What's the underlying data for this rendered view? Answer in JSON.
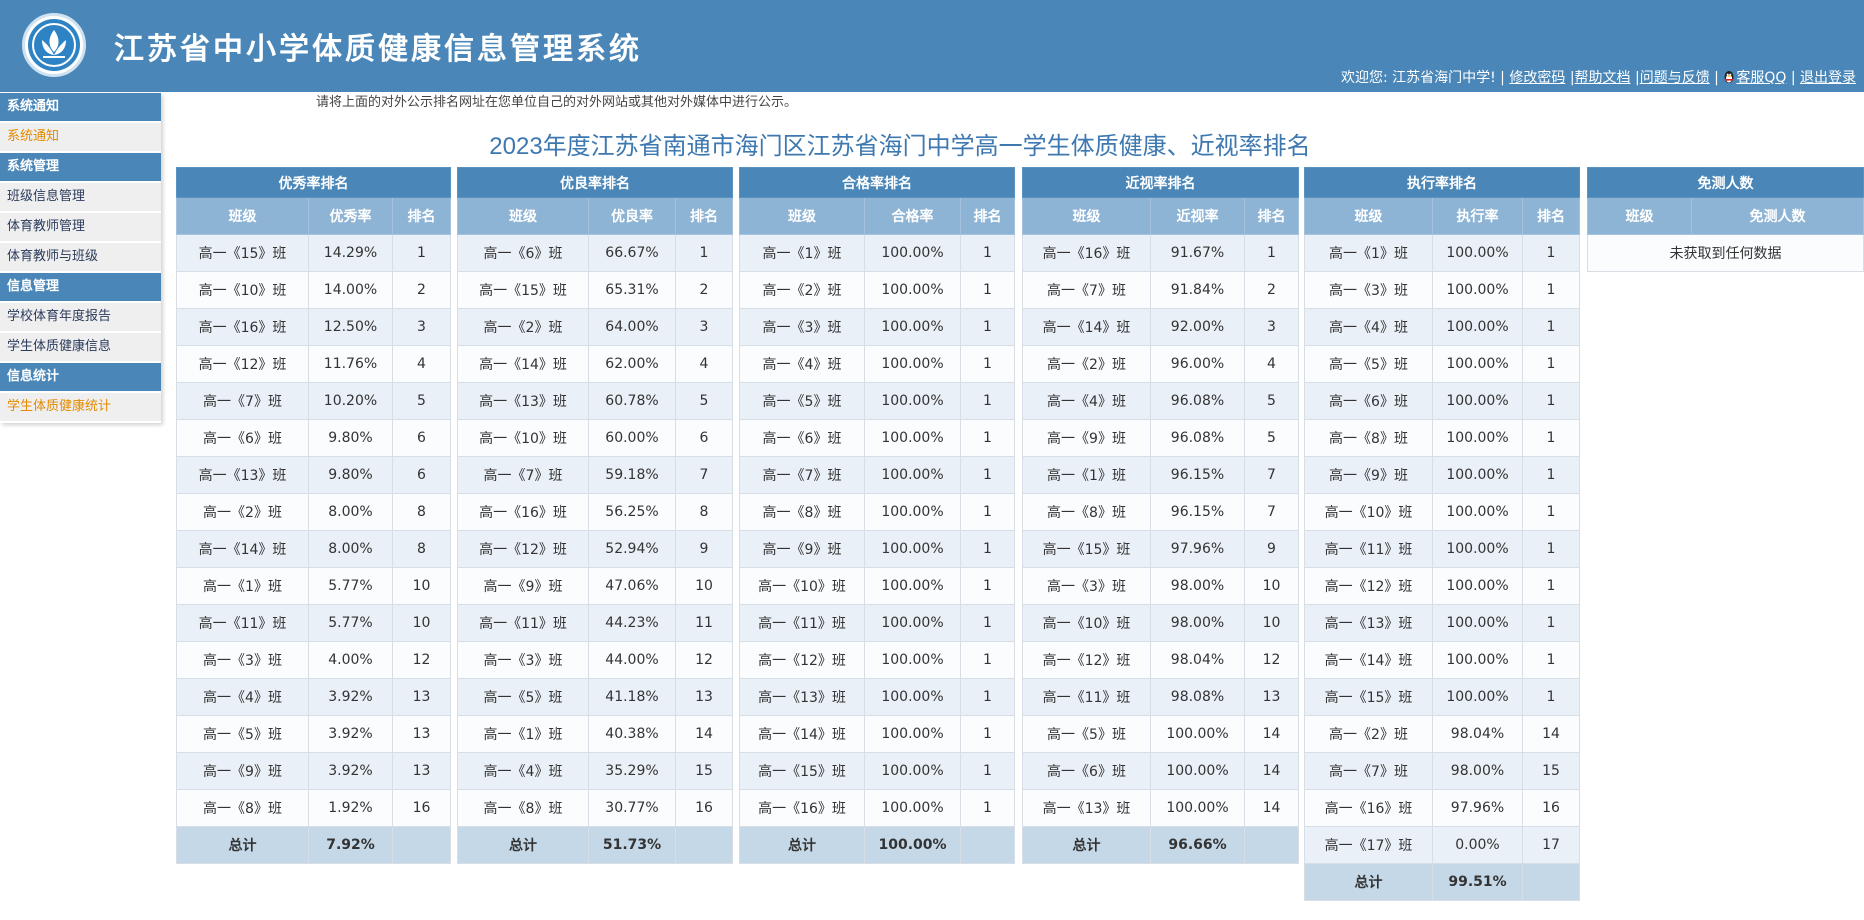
{
  "header": {
    "title": "江苏省中小学体质健康信息管理系统",
    "welcome": "欢迎您: 江苏省海门中学! |",
    "links": [
      "修改密码",
      "帮助文档",
      "问题与反馈",
      "客服QQ",
      "退出登录"
    ]
  },
  "sidebar": [
    {
      "head": "系统通知",
      "items": [
        {
          "label": "系统通知",
          "active": true
        }
      ]
    },
    {
      "head": "系统管理",
      "items": [
        {
          "label": "班级信息管理"
        },
        {
          "label": "体育教师管理"
        },
        {
          "label": "体育教师与班级"
        }
      ]
    },
    {
      "head": "信息管理",
      "items": [
        {
          "label": "学校体育年度报告"
        },
        {
          "label": "学生体质健康信息"
        }
      ]
    },
    {
      "head": "信息统计",
      "items": [
        {
          "label": "学生体质健康统计",
          "active": true
        }
      ]
    }
  ],
  "notice": "请将上面的对外公示排名网址在您单位自己的对外网站或其他对外媒体中进行公示。",
  "page_title": "2023年度江苏省南通市海门区江苏省海门中学高一学生体质健康、近视率排名",
  "tables": [
    {
      "caption": "优秀率排名",
      "headers": [
        "班级",
        "优秀率",
        "排名"
      ],
      "rows": [
        [
          "高一《15》班",
          "14.29%",
          "1"
        ],
        [
          "高一《10》班",
          "14.00%",
          "2"
        ],
        [
          "高一《16》班",
          "12.50%",
          "3"
        ],
        [
          "高一《12》班",
          "11.76%",
          "4"
        ],
        [
          "高一《7》班",
          "10.20%",
          "5"
        ],
        [
          "高一《6》班",
          "9.80%",
          "6"
        ],
        [
          "高一《13》班",
          "9.80%",
          "6"
        ],
        [
          "高一《2》班",
          "8.00%",
          "8"
        ],
        [
          "高一《14》班",
          "8.00%",
          "8"
        ],
        [
          "高一《1》班",
          "5.77%",
          "10"
        ],
        [
          "高一《11》班",
          "5.77%",
          "10"
        ],
        [
          "高一《3》班",
          "4.00%",
          "12"
        ],
        [
          "高一《4》班",
          "3.92%",
          "13"
        ],
        [
          "高一《5》班",
          "3.92%",
          "13"
        ],
        [
          "高一《9》班",
          "3.92%",
          "13"
        ],
        [
          "高一《8》班",
          "1.92%",
          "16"
        ]
      ],
      "total": [
        "总计",
        "7.92%",
        ""
      ]
    },
    {
      "caption": "优良率排名",
      "headers": [
        "班级",
        "优良率",
        "排名"
      ],
      "rows": [
        [
          "高一《6》班",
          "66.67%",
          "1"
        ],
        [
          "高一《15》班",
          "65.31%",
          "2"
        ],
        [
          "高一《2》班",
          "64.00%",
          "3"
        ],
        [
          "高一《14》班",
          "62.00%",
          "4"
        ],
        [
          "高一《13》班",
          "60.78%",
          "5"
        ],
        [
          "高一《10》班",
          "60.00%",
          "6"
        ],
        [
          "高一《7》班",
          "59.18%",
          "7"
        ],
        [
          "高一《16》班",
          "56.25%",
          "8"
        ],
        [
          "高一《12》班",
          "52.94%",
          "9"
        ],
        [
          "高一《9》班",
          "47.06%",
          "10"
        ],
        [
          "高一《11》班",
          "44.23%",
          "11"
        ],
        [
          "高一《3》班",
          "44.00%",
          "12"
        ],
        [
          "高一《5》班",
          "41.18%",
          "13"
        ],
        [
          "高一《1》班",
          "40.38%",
          "14"
        ],
        [
          "高一《4》班",
          "35.29%",
          "15"
        ],
        [
          "高一《8》班",
          "30.77%",
          "16"
        ]
      ],
      "total": [
        "总计",
        "51.73%",
        ""
      ]
    },
    {
      "caption": "合格率排名",
      "headers": [
        "班级",
        "合格率",
        "排名"
      ],
      "rows": [
        [
          "高一《1》班",
          "100.00%",
          "1"
        ],
        [
          "高一《2》班",
          "100.00%",
          "1"
        ],
        [
          "高一《3》班",
          "100.00%",
          "1"
        ],
        [
          "高一《4》班",
          "100.00%",
          "1"
        ],
        [
          "高一《5》班",
          "100.00%",
          "1"
        ],
        [
          "高一《6》班",
          "100.00%",
          "1"
        ],
        [
          "高一《7》班",
          "100.00%",
          "1"
        ],
        [
          "高一《8》班",
          "100.00%",
          "1"
        ],
        [
          "高一《9》班",
          "100.00%",
          "1"
        ],
        [
          "高一《10》班",
          "100.00%",
          "1"
        ],
        [
          "高一《11》班",
          "100.00%",
          "1"
        ],
        [
          "高一《12》班",
          "100.00%",
          "1"
        ],
        [
          "高一《13》班",
          "100.00%",
          "1"
        ],
        [
          "高一《14》班",
          "100.00%",
          "1"
        ],
        [
          "高一《15》班",
          "100.00%",
          "1"
        ],
        [
          "高一《16》班",
          "100.00%",
          "1"
        ]
      ],
      "total": [
        "总计",
        "100.00%",
        ""
      ]
    },
    {
      "caption": "近视率排名",
      "headers": [
        "班级",
        "近视率",
        "排名"
      ],
      "rows": [
        [
          "高一《16》班",
          "91.67%",
          "1"
        ],
        [
          "高一《7》班",
          "91.84%",
          "2"
        ],
        [
          "高一《14》班",
          "92.00%",
          "3"
        ],
        [
          "高一《2》班",
          "96.00%",
          "4"
        ],
        [
          "高一《4》班",
          "96.08%",
          "5"
        ],
        [
          "高一《9》班",
          "96.08%",
          "5"
        ],
        [
          "高一《1》班",
          "96.15%",
          "7"
        ],
        [
          "高一《8》班",
          "96.15%",
          "7"
        ],
        [
          "高一《15》班",
          "97.96%",
          "9"
        ],
        [
          "高一《3》班",
          "98.00%",
          "10"
        ],
        [
          "高一《10》班",
          "98.00%",
          "10"
        ],
        [
          "高一《12》班",
          "98.04%",
          "12"
        ],
        [
          "高一《11》班",
          "98.08%",
          "13"
        ],
        [
          "高一《5》班",
          "100.00%",
          "14"
        ],
        [
          "高一《6》班",
          "100.00%",
          "14"
        ],
        [
          "高一《13》班",
          "100.00%",
          "14"
        ]
      ],
      "total": [
        "总计",
        "96.66%",
        ""
      ]
    },
    {
      "caption": "执行率排名",
      "headers": [
        "班级",
        "执行率",
        "排名"
      ],
      "rows": [
        [
          "高一《1》班",
          "100.00%",
          "1"
        ],
        [
          "高一《3》班",
          "100.00%",
          "1"
        ],
        [
          "高一《4》班",
          "100.00%",
          "1"
        ],
        [
          "高一《5》班",
          "100.00%",
          "1"
        ],
        [
          "高一《6》班",
          "100.00%",
          "1"
        ],
        [
          "高一《8》班",
          "100.00%",
          "1"
        ],
        [
          "高一《9》班",
          "100.00%",
          "1"
        ],
        [
          "高一《10》班",
          "100.00%",
          "1"
        ],
        [
          "高一《11》班",
          "100.00%",
          "1"
        ],
        [
          "高一《12》班",
          "100.00%",
          "1"
        ],
        [
          "高一《13》班",
          "100.00%",
          "1"
        ],
        [
          "高一《14》班",
          "100.00%",
          "1"
        ],
        [
          "高一《15》班",
          "100.00%",
          "1"
        ],
        [
          "高一《2》班",
          "98.04%",
          "14"
        ],
        [
          "高一《7》班",
          "98.00%",
          "15"
        ],
        [
          "高一《16》班",
          "97.96%",
          "16"
        ],
        [
          "高一《17》班",
          "0.00%",
          "17"
        ]
      ],
      "total": [
        "总计",
        "99.51%",
        ""
      ]
    },
    {
      "caption": "免测人数",
      "headers": [
        "班级",
        "免测人数"
      ],
      "rows": [],
      "empty_text": "未获取到任何数据"
    }
  ],
  "colors": {
    "header_bg": "#4a87b8",
    "subheader_bg": "#8eb4d5",
    "accent_orange": "#e38a00",
    "title_blue": "#3d78b0"
  }
}
